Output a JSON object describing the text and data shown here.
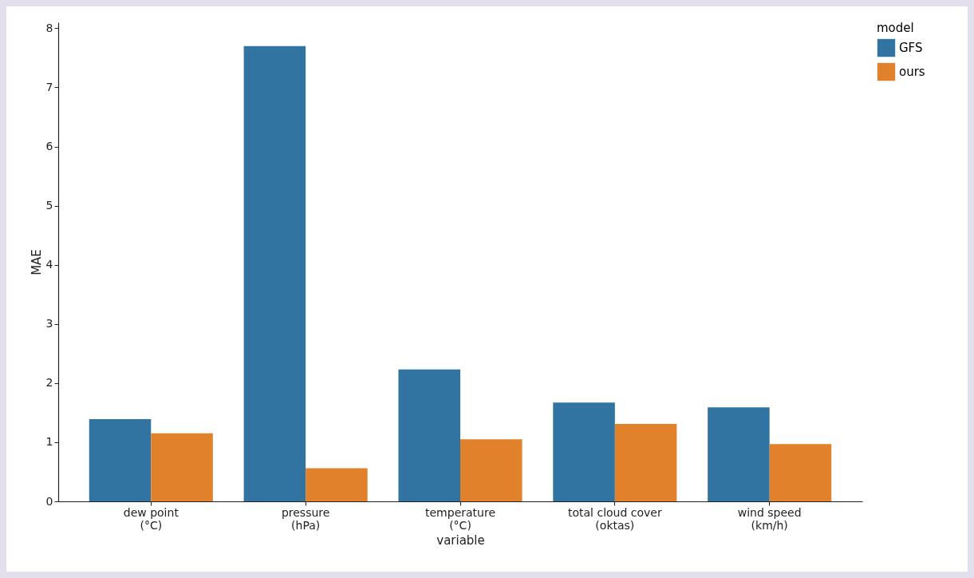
{
  "chart_data": {
    "type": "bar",
    "xlabel": "variable",
    "ylabel": "MAE",
    "legend_title": "model",
    "legend": "right",
    "grid": false,
    "categories": [
      "dew point\n(°C)",
      "pressure\n(hPa)",
      "temperature\n(°C)",
      "total cloud cover\n(oktas)",
      "wind speed\n(km/h)"
    ],
    "ylim": [
      0,
      8.1
    ],
    "yticks": [
      0,
      1,
      2,
      3,
      4,
      5,
      6,
      7,
      8
    ],
    "series": [
      {
        "name": "GFS",
        "color": "#3274a1",
        "values": [
          1.39,
          7.7,
          2.23,
          1.67,
          1.59
        ]
      },
      {
        "name": "ours",
        "color": "#e1812c",
        "values": [
          1.15,
          0.56,
          1.05,
          1.31,
          0.97
        ]
      }
    ]
  }
}
